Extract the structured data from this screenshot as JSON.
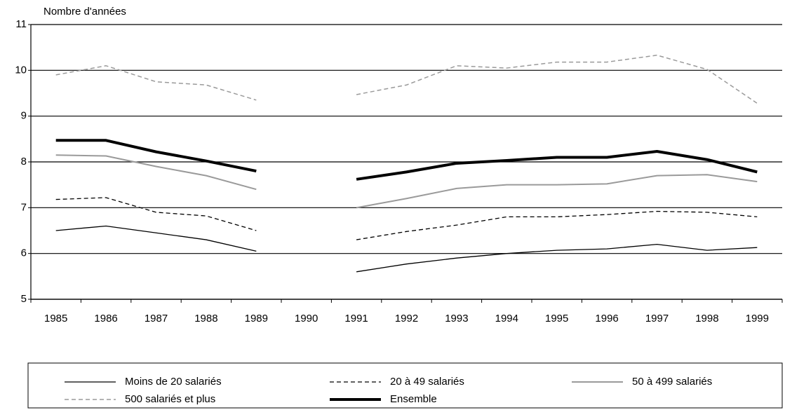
{
  "chart_data": {
    "type": "line",
    "y_label": "Nombre d'années",
    "x": [
      1985,
      1986,
      1987,
      1988,
      1989,
      1990,
      1991,
      1992,
      1993,
      1994,
      1995,
      1996,
      1997,
      1998,
      1999
    ],
    "ylim": [
      5,
      11
    ],
    "yticks": [
      5,
      6,
      7,
      8,
      9,
      10,
      11
    ],
    "grid": true,
    "series": [
      {
        "name": "Moins de 20 salariés",
        "color": "#000000",
        "width": 1.3,
        "dash": "none",
        "values": [
          6.5,
          6.6,
          6.45,
          6.3,
          6.05,
          null,
          5.6,
          5.77,
          5.9,
          6.0,
          6.07,
          6.1,
          6.2,
          6.07,
          6.13
        ]
      },
      {
        "name": "20 à 49 salariés",
        "color": "#000000",
        "width": 1.3,
        "dash": "6,4",
        "values": [
          7.18,
          7.22,
          6.9,
          6.82,
          6.5,
          null,
          6.3,
          6.48,
          6.62,
          6.8,
          6.8,
          6.85,
          6.92,
          6.9,
          6.8
        ]
      },
      {
        "name": "50 à 499 salariés",
        "color": "#9a9a9a",
        "width": 2,
        "dash": "none",
        "values": [
          8.15,
          8.13,
          7.9,
          7.7,
          7.4,
          null,
          7.0,
          7.2,
          7.42,
          7.5,
          7.5,
          7.52,
          7.7,
          7.72,
          7.57
        ]
      },
      {
        "name": "500 salariés et plus",
        "color": "#9a9a9a",
        "width": 1.5,
        "dash": "6,4",
        "values": [
          9.9,
          10.1,
          9.75,
          9.68,
          9.35,
          null,
          9.47,
          9.68,
          10.1,
          10.05,
          10.18,
          10.18,
          10.33,
          10.02,
          9.28
        ]
      },
      {
        "name": "Ensemble",
        "color": "#000000",
        "width": 4,
        "dash": "none",
        "values": [
          8.47,
          8.47,
          8.22,
          8.02,
          7.8,
          null,
          7.62,
          7.78,
          7.97,
          8.03,
          8.1,
          8.1,
          8.23,
          8.05,
          7.78
        ]
      }
    ]
  }
}
